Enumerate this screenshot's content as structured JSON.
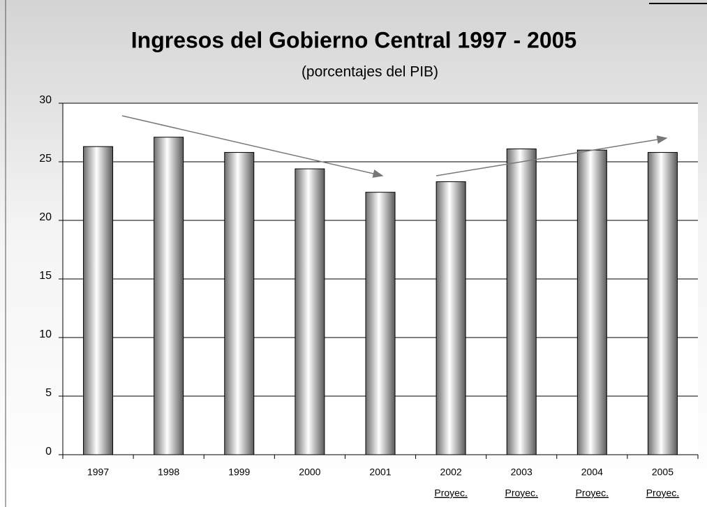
{
  "chart_data": {
    "type": "bar",
    "title": "Ingresos del Gobierno Central 1997 - 2005",
    "subtitle": "(porcentajes del PIB)",
    "categories": [
      "1997",
      "1998",
      "1999",
      "2000",
      "2001",
      "2002",
      "2003",
      "2004",
      "2005"
    ],
    "sublabels": [
      null,
      null,
      null,
      null,
      null,
      "Proyec.",
      "Proyec.",
      "Proyec.",
      "Proyec."
    ],
    "values": [
      26.3,
      27.1,
      25.8,
      24.4,
      22.4,
      23.3,
      26.1,
      26.0,
      25.8
    ],
    "ylim": [
      0,
      30
    ],
    "yticks": [
      0,
      5,
      10,
      15,
      20,
      25,
      30
    ],
    "grid": true
  }
}
